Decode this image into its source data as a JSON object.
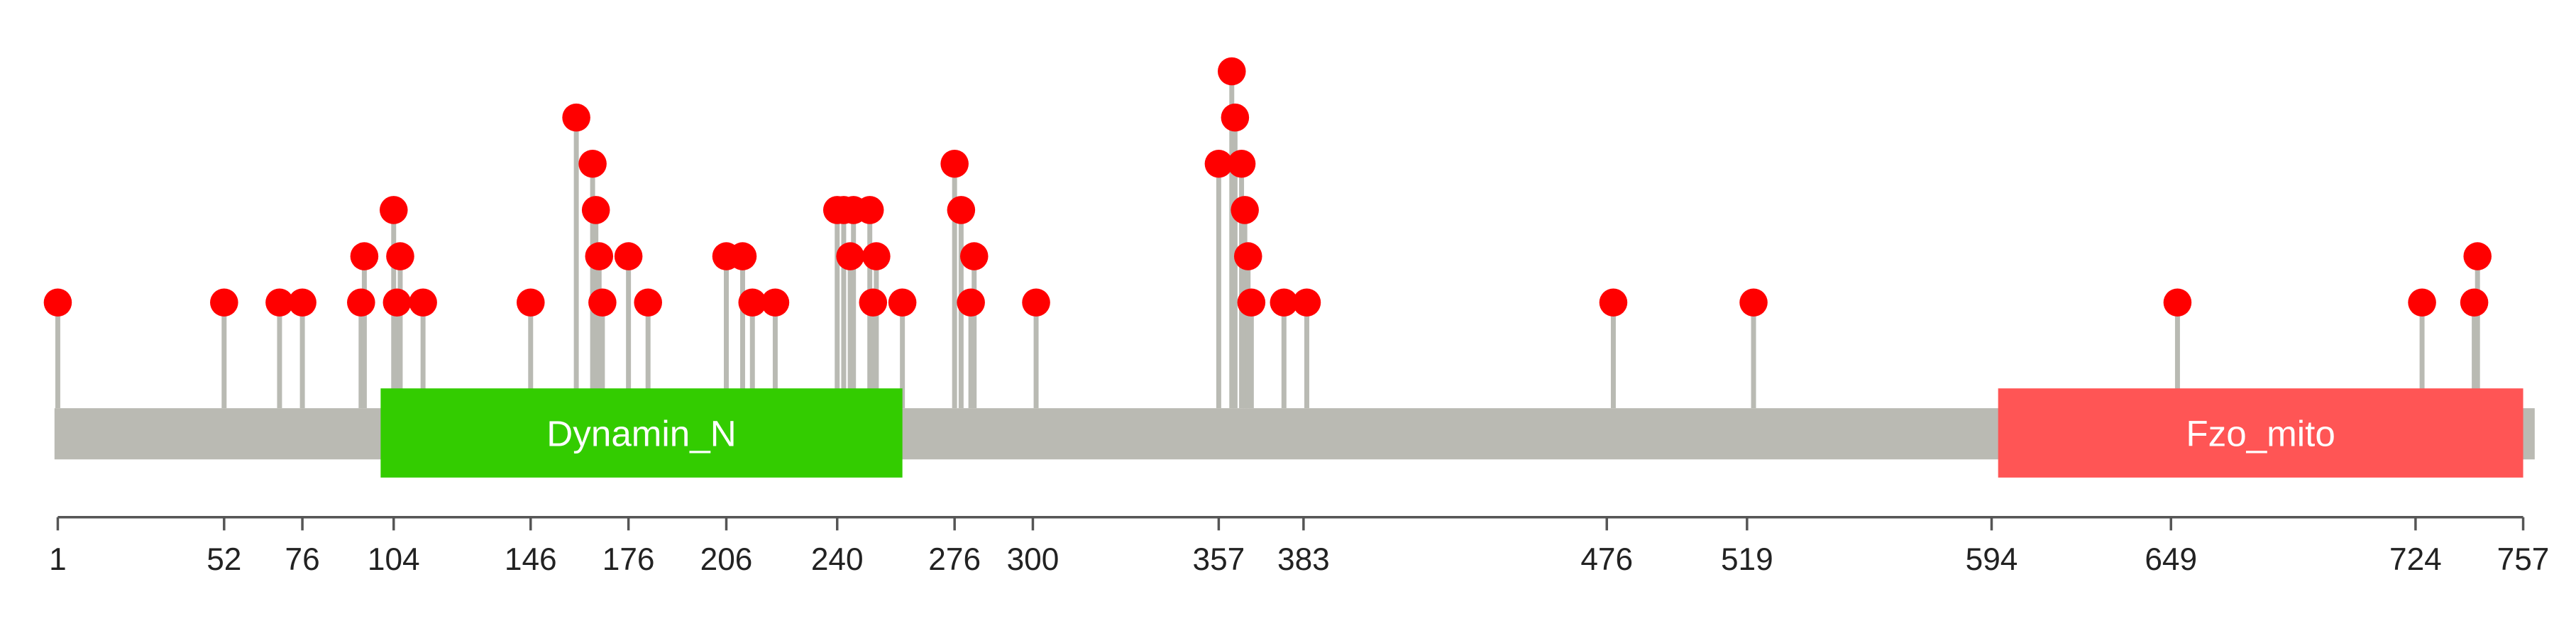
{
  "chart_data": {
    "type": "lollipop",
    "x": [
      1,
      52,
      69,
      76,
      94,
      95,
      104,
      105,
      106,
      113,
      146,
      160,
      165,
      166,
      167,
      168,
      176,
      182,
      206,
      211,
      214,
      221,
      240,
      242,
      244,
      245,
      250,
      251,
      252,
      260,
      276,
      278,
      281,
      282,
      301,
      357,
      361,
      362,
      364,
      365,
      366,
      367,
      377,
      384,
      478,
      521,
      651,
      726,
      742,
      743
    ],
    "values": [
      1,
      1,
      1,
      1,
      1,
      2,
      3,
      1,
      2,
      1,
      1,
      5,
      4,
      3,
      2,
      1,
      2,
      1,
      2,
      2,
      1,
      1,
      3,
      3,
      2,
      3,
      3,
      1,
      2,
      1,
      4,
      3,
      1,
      2,
      1,
      4,
      6,
      5,
      4,
      3,
      2,
      1,
      1,
      1,
      1,
      1,
      1,
      1,
      1,
      2
    ],
    "color": "#ff0000",
    "stem_color": "#b9bab3",
    "backbone_color": "#babab3",
    "domains": [
      {
        "name": "Dynamin_N",
        "start": 100,
        "end": 260,
        "color": "#33cc00"
      },
      {
        "name": "Fzo_mito",
        "start": 596,
        "end": 757,
        "color": "#ff5555"
      }
    ],
    "xlim": [
      1,
      757
    ],
    "xticks": [
      1,
      52,
      76,
      104,
      146,
      176,
      206,
      240,
      276,
      300,
      357,
      383,
      476,
      519,
      594,
      649,
      724,
      757
    ],
    "ylim": [
      0,
      6
    ]
  }
}
